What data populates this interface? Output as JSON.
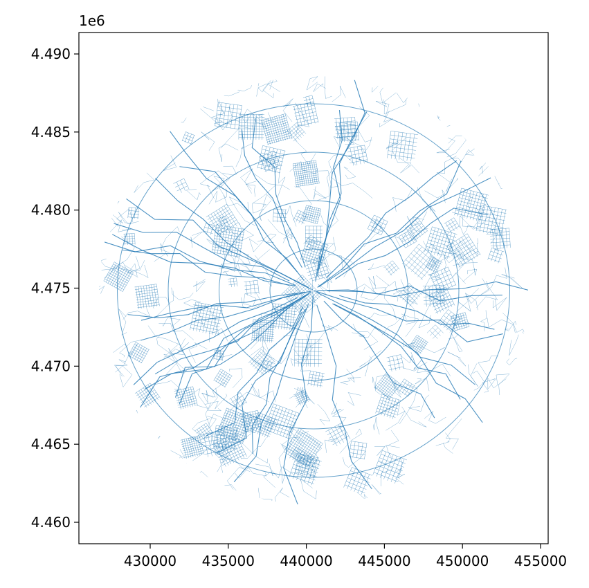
{
  "chart_data": {
    "type": "map",
    "offset_label": "1e6",
    "color": "#1f77b4",
    "xlim": [
      425434,
      455488
    ],
    "ylim": [
      4458626,
      4491374
    ],
    "xticks": [
      430000,
      435000,
      440000,
      445000,
      450000,
      455000
    ],
    "yticks": [
      {
        "value": 4460000,
        "label": "4.460"
      },
      {
        "value": 4465000,
        "label": "4.465"
      },
      {
        "value": 4470000,
        "label": "4.470"
      },
      {
        "value": 4475000,
        "label": "4.475"
      },
      {
        "value": 4480000,
        "label": "4.480"
      },
      {
        "value": 4485000,
        "label": "4.485"
      },
      {
        "value": 4490000,
        "label": "4.490"
      }
    ],
    "grid": false
  }
}
